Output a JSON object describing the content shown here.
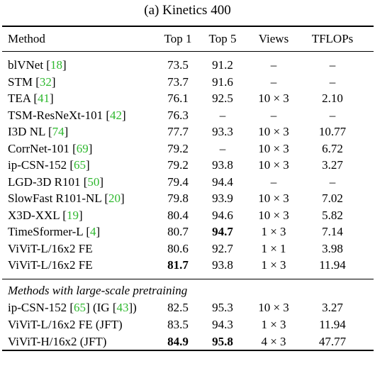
{
  "caption": "(a) Kinetics 400",
  "columns": [
    "Method",
    "Top 1",
    "Top 5",
    "Views",
    "TFLOPs"
  ],
  "rows": [
    {
      "method": "blVNet",
      "ref": "18",
      "top1": "73.5",
      "top5": "91.2",
      "views": "–",
      "tflops": "–"
    },
    {
      "method": "STM",
      "ref": "32",
      "top1": "73.7",
      "top5": "91.6",
      "views": "–",
      "tflops": "–"
    },
    {
      "method": "TEA",
      "ref": "41",
      "top1": "76.1",
      "top5": "92.5",
      "views": "10 × 3",
      "tflops": "2.10"
    },
    {
      "method": "TSM-ResNeXt-101",
      "ref": "42",
      "top1": "76.3",
      "top5": "–",
      "views": "–",
      "tflops": "–"
    },
    {
      "method": "I3D NL",
      "ref": "74",
      "top1": "77.7",
      "top5": "93.3",
      "views": "10 × 3",
      "tflops": "10.77"
    },
    {
      "method": "CorrNet-101",
      "ref": "69",
      "top1": "79.2",
      "top5": "–",
      "views": "10 × 3",
      "tflops": "6.72"
    },
    {
      "method": "ip-CSN-152",
      "ref": "65",
      "top1": "79.2",
      "top5": "93.8",
      "views": "10 × 3",
      "tflops": "3.27"
    },
    {
      "method": "LGD-3D R101",
      "ref": "50",
      "top1": "79.4",
      "top5": "94.4",
      "views": "–",
      "tflops": "–"
    },
    {
      "method": "SlowFast R101-NL",
      "ref": "20",
      "top1": "79.8",
      "top5": "93.9",
      "views": "10 × 3",
      "tflops": "7.02"
    },
    {
      "method": "X3D-XXL",
      "ref": "19",
      "top1": "80.4",
      "top5": "94.6",
      "views": "10 × 3",
      "tflops": "5.82"
    },
    {
      "method": "TimeSformer-L",
      "ref": "4",
      "top1": "80.7",
      "top5": "94.7",
      "views": "1 × 3",
      "tflops": "7.14",
      "bold_top5": true
    },
    {
      "method": "ViViT-L/16x2 FE",
      "ref": "",
      "top1": "80.6",
      "top5": "92.7",
      "views": "1 × 1",
      "tflops": "3.98"
    },
    {
      "method": "ViViT-L/16x2 FE",
      "ref": "",
      "top1": "81.7",
      "top5": "93.8",
      "views": "1 × 3",
      "tflops": "11.94",
      "bold_top1": true
    }
  ],
  "section_title": "Methods with large-scale pretraining",
  "pretrain_rows": [
    {
      "method": "ip-CSN-152",
      "ref": "65",
      "extra_pre": " (IG ",
      "extra_ref": "43",
      "extra_post": ")",
      "top1": "82.5",
      "top5": "95.3",
      "views": "10 × 3",
      "tflops": "3.27"
    },
    {
      "method": "ViViT-L/16x2 FE (JFT)",
      "ref": "",
      "top1": "83.5",
      "top5": "94.3",
      "views": "1 × 3",
      "tflops": "11.94"
    },
    {
      "method": "ViViT-H/16x2 (JFT)",
      "ref": "",
      "top1": "84.9",
      "top5": "95.8",
      "views": "4 × 3",
      "tflops": "47.77",
      "bold_top1": true,
      "bold_top5": true
    }
  ]
}
